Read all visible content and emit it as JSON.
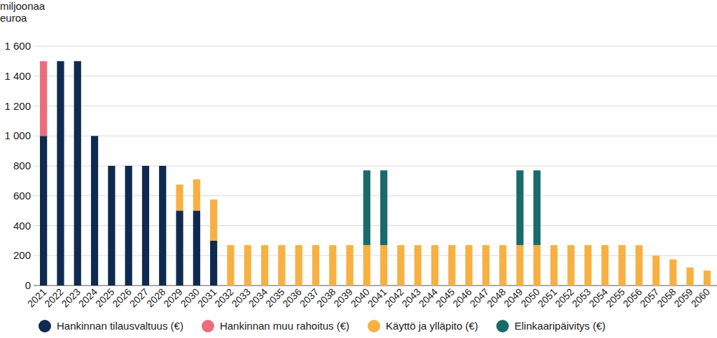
{
  "chart_data": {
    "type": "bar",
    "stacked": true,
    "grid": true,
    "legend": "bottom",
    "y_label": "miljoonaa euroa",
    "ylim": [
      0,
      1600
    ],
    "yticks": [
      0,
      200,
      400,
      600,
      800,
      {
        "value": 1000,
        "label": "1 000"
      },
      {
        "value": 1200,
        "label": "1 200"
      },
      {
        "value": 1400,
        "label": "1 400"
      },
      {
        "value": 1600,
        "label": "1 600"
      }
    ],
    "categories": [
      "2021",
      "2022",
      "2023",
      "2024",
      "2025",
      "2026",
      "2027",
      "2028",
      "2029",
      "2030",
      "2031",
      "2032",
      "2033",
      "2034",
      "2035",
      "2036",
      "2037",
      "2038",
      "2039",
      "2040",
      "2041",
      "2042",
      "2043",
      "2044",
      "2045",
      "2046",
      "2047",
      "2048",
      "2049",
      "2050",
      "2051",
      "2052",
      "2053",
      "2054",
      "2055",
      "2056",
      "2057",
      "2058",
      "2059",
      "2060"
    ],
    "series": [
      {
        "name": "Hankinnan tilausvaltuus (€)",
        "color": "#0f2a4e",
        "values": [
          1000,
          1500,
          1500,
          1000,
          800,
          800,
          800,
          800,
          500,
          500,
          300,
          0,
          0,
          0,
          0,
          0,
          0,
          0,
          0,
          0,
          0,
          0,
          0,
          0,
          0,
          0,
          0,
          0,
          0,
          0,
          0,
          0,
          0,
          0,
          0,
          0,
          0,
          0,
          0,
          0
        ]
      },
      {
        "name": "Hankinnan muu rahoitus (€)",
        "color": "#ea6d7c",
        "values": [
          500,
          0,
          0,
          0,
          0,
          0,
          0,
          0,
          0,
          0,
          0,
          0,
          0,
          0,
          0,
          0,
          0,
          0,
          0,
          0,
          0,
          0,
          0,
          0,
          0,
          0,
          0,
          0,
          0,
          0,
          0,
          0,
          0,
          0,
          0,
          0,
          0,
          0,
          0,
          0
        ]
      },
      {
        "name": "Käyttö ja ylläpito (€)",
        "color": "#f6b142",
        "values": [
          0,
          0,
          0,
          0,
          0,
          0,
          0,
          0,
          175,
          210,
          275,
          270,
          270,
          270,
          270,
          270,
          270,
          270,
          270,
          270,
          270,
          270,
          270,
          270,
          270,
          270,
          270,
          270,
          270,
          270,
          270,
          270,
          270,
          270,
          270,
          270,
          200,
          175,
          120,
          100
        ]
      },
      {
        "name": "Elinkaaripäivitys (€)",
        "color": "#1b6a6b",
        "values": [
          0,
          0,
          0,
          0,
          0,
          0,
          0,
          0,
          0,
          0,
          0,
          0,
          0,
          0,
          0,
          0,
          0,
          0,
          0,
          500,
          500,
          0,
          0,
          0,
          0,
          0,
          0,
          0,
          500,
          500,
          0,
          0,
          0,
          0,
          0,
          0,
          0,
          0,
          0,
          0
        ]
      }
    ]
  }
}
